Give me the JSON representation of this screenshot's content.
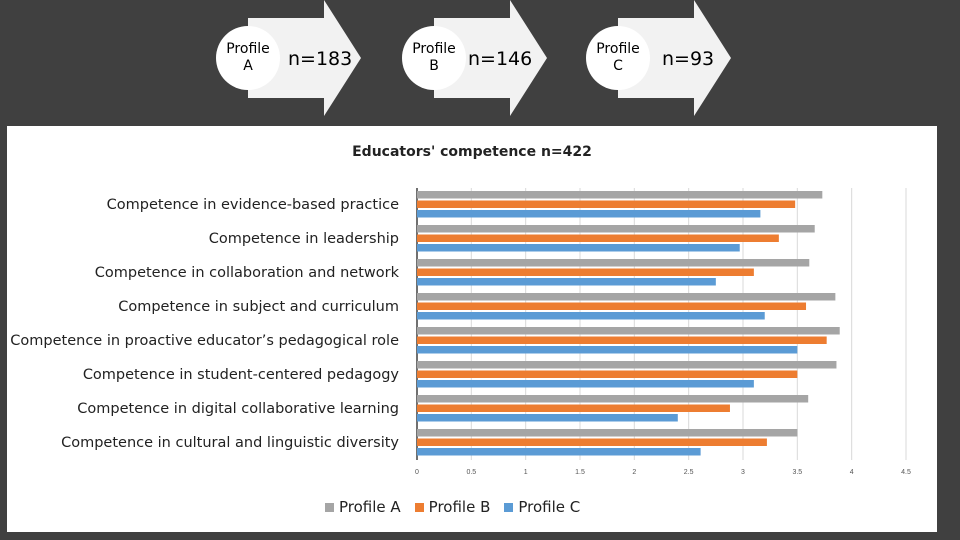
{
  "profiles": [
    {
      "label_line1": "Profile",
      "label_line2": "A",
      "count": "n=183"
    },
    {
      "label_line1": "Profile",
      "label_line2": "B",
      "count": "n=146"
    },
    {
      "label_line1": "Profile",
      "label_line2": "C",
      "count": "n=93"
    }
  ],
  "chart_data": {
    "type": "bar",
    "orientation": "horizontal",
    "title": "Educators' competence n=422",
    "categories": [
      "Competence in evidence-based practice",
      "Competence in leadership",
      "Competence in collaboration and network",
      "Competence in subject and curriculum",
      "Competence in proactive educator’s pedagogical role",
      "Competence in student-centered pedagogy",
      "Competence in digital collaborative learning",
      "Competence in cultural and linguistic diversity"
    ],
    "series": [
      {
        "name": "Profile A",
        "color": "#a5a5a5",
        "values": [
          3.73,
          3.66,
          3.61,
          3.85,
          3.89,
          3.86,
          3.6,
          3.5
        ]
      },
      {
        "name": "Profile B",
        "color": "#ed7d31",
        "values": [
          3.48,
          3.33,
          3.1,
          3.58,
          3.77,
          3.5,
          2.88,
          3.22
        ]
      },
      {
        "name": "Profile C",
        "color": "#5b9bd5",
        "values": [
          3.16,
          2.97,
          2.75,
          3.2,
          3.5,
          3.1,
          2.4,
          2.61
        ]
      }
    ],
    "xlim": [
      0,
      4.5
    ],
    "xticks": [
      "0",
      "0.5",
      "1",
      "1.5",
      "2",
      "2.5",
      "3",
      "3.5",
      "4",
      "4.5"
    ],
    "grid": true,
    "legend_position": "bottom"
  }
}
